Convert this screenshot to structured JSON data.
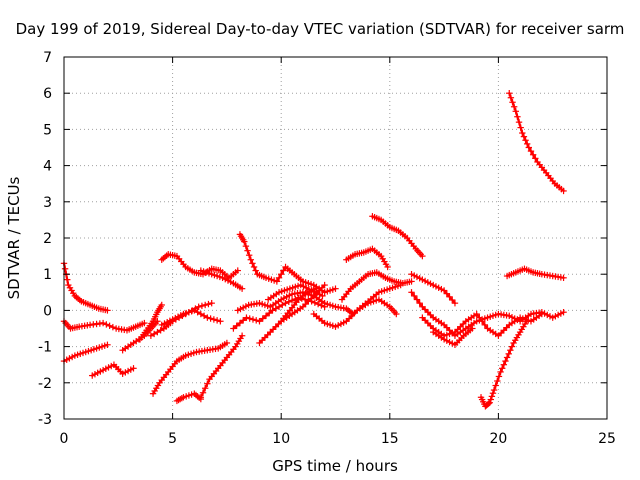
{
  "chart_data": {
    "type": "scatter",
    "title": "Day 199 of 2019, Sidereal Day-to-day VTEC variation (SDTVAR) for receiver sarm",
    "xlabel": "GPS time / hours",
    "ylabel": "SDTVAR / TECUs",
    "xlim": [
      0,
      25
    ],
    "ylim": [
      -3,
      7
    ],
    "xticks": [
      0,
      5,
      10,
      15,
      20,
      25
    ],
    "yticks": [
      -3,
      -2,
      -1,
      0,
      1,
      2,
      3,
      4,
      5,
      6,
      7
    ],
    "grid": true,
    "marker": "+",
    "color": "#ff0000",
    "series": [
      {
        "name": "s1",
        "x": [
          0.0,
          0.2,
          0.5,
          0.8,
          1.2,
          1.6,
          2.0
        ],
        "y": [
          1.3,
          0.7,
          0.4,
          0.25,
          0.15,
          0.05,
          0.0
        ]
      },
      {
        "name": "s2",
        "x": [
          0.0,
          0.3,
          0.7,
          1.2,
          1.8,
          2.4,
          2.9,
          3.3,
          3.7
        ],
        "y": [
          -0.3,
          -0.5,
          -0.45,
          -0.4,
          -0.35,
          -0.5,
          -0.55,
          -0.45,
          -0.35
        ]
      },
      {
        "name": "s3",
        "x": [
          0.0,
          0.5,
          1.0,
          1.5,
          2.0
        ],
        "y": [
          -1.4,
          -1.25,
          -1.15,
          -1.05,
          -0.95
        ]
      },
      {
        "name": "s4",
        "x": [
          1.3,
          1.8,
          2.3,
          2.7,
          3.2
        ],
        "y": [
          -1.8,
          -1.65,
          -1.5,
          -1.75,
          -1.6
        ]
      },
      {
        "name": "s5",
        "x": [
          2.7,
          3.2,
          3.7,
          4.0,
          4.3
        ],
        "y": [
          -1.1,
          -0.9,
          -0.7,
          -0.5,
          -0.3
        ]
      },
      {
        "name": "s6",
        "x": [
          3.5,
          3.8,
          4.1,
          4.3,
          4.5
        ],
        "y": [
          -0.8,
          -0.55,
          -0.3,
          -0.05,
          0.15
        ]
      },
      {
        "name": "s7",
        "x": [
          4.0,
          4.6,
          5.0,
          5.6,
          6.2,
          6.8
        ],
        "y": [
          -0.7,
          -0.5,
          -0.3,
          -0.1,
          0.1,
          0.2
        ]
      },
      {
        "name": "s8",
        "x": [
          4.5,
          5.0,
          5.5,
          6.0,
          6.6,
          7.2
        ],
        "y": [
          -0.4,
          -0.25,
          -0.1,
          0.0,
          -0.2,
          -0.3
        ]
      },
      {
        "name": "s9",
        "x": [
          4.1,
          4.4,
          4.8,
          5.2,
          5.6,
          6.1,
          6.6,
          7.1,
          7.5
        ],
        "y": [
          -2.3,
          -2.0,
          -1.7,
          -1.4,
          -1.25,
          -1.15,
          -1.1,
          -1.05,
          -0.9
        ]
      },
      {
        "name": "s10",
        "x": [
          5.2,
          5.5,
          6.0,
          6.3
        ],
        "y": [
          -2.5,
          -2.4,
          -2.3,
          -2.45
        ]
      },
      {
        "name": "s11",
        "x": [
          6.3,
          6.7,
          7.1,
          7.5,
          7.9,
          8.2
        ],
        "y": [
          -2.4,
          -1.9,
          -1.6,
          -1.3,
          -1.0,
          -0.7
        ]
      },
      {
        "name": "s12",
        "x": [
          4.5,
          4.8,
          5.2,
          5.6,
          6.0,
          6.4,
          6.8,
          7.2,
          7.6,
          8.0
        ],
        "y": [
          1.4,
          1.55,
          1.5,
          1.2,
          1.05,
          1.0,
          1.15,
          1.1,
          0.9,
          1.1
        ]
      },
      {
        "name": "s13",
        "x": [
          6.3,
          6.8,
          7.3,
          7.8,
          8.2
        ],
        "y": [
          1.1,
          1.0,
          0.9,
          0.75,
          0.6
        ]
      },
      {
        "name": "s14",
        "x": [
          8.1,
          8.3,
          8.6,
          8.9,
          9.3,
          9.8,
          10.2,
          10.6,
          11.0,
          11.5,
          12.0,
          12.5
        ],
        "y": [
          2.1,
          1.9,
          1.4,
          1.0,
          0.9,
          0.8,
          1.2,
          1.0,
          0.8,
          0.7,
          0.5,
          0.6
        ]
      },
      {
        "name": "s15",
        "x": [
          8.0,
          8.5,
          9.0,
          9.5,
          10.0,
          10.5,
          11.0,
          11.5,
          12.0,
          12.5,
          13.0,
          13.3
        ],
        "y": [
          0.0,
          0.15,
          0.2,
          0.1,
          0.3,
          0.45,
          0.5,
          0.4,
          0.2,
          0.1,
          0.05,
          -0.1
        ]
      },
      {
        "name": "s16",
        "x": [
          7.8,
          8.4,
          9.0,
          9.6,
          10.2,
          10.8,
          11.4,
          12.0
        ],
        "y": [
          -0.5,
          -0.2,
          -0.3,
          0.0,
          0.2,
          0.35,
          0.25,
          0.1
        ]
      },
      {
        "name": "s17",
        "x": [
          9.0,
          9.5,
          10.0,
          10.4,
          10.8,
          11.2,
          11.6
        ],
        "y": [
          -0.9,
          -0.6,
          -0.3,
          0.0,
          0.3,
          0.5,
          0.6
        ]
      },
      {
        "name": "s18",
        "x": [
          9.4,
          9.9,
          10.4,
          10.9,
          11.4,
          11.9
        ],
        "y": [
          0.3,
          0.5,
          0.6,
          0.7,
          0.55,
          0.4
        ]
      },
      {
        "name": "s19",
        "x": [
          10.0,
          10.5,
          11.0,
          11.5,
          12.0
        ],
        "y": [
          -0.3,
          -0.1,
          0.1,
          0.4,
          0.7
        ]
      },
      {
        "name": "s20",
        "x": [
          11.5,
          12.0,
          12.5,
          13.0,
          13.5,
          14.0,
          14.5,
          15.0,
          15.5
        ],
        "y": [
          -0.1,
          -0.35,
          -0.45,
          -0.3,
          0.0,
          0.25,
          0.5,
          0.6,
          0.7
        ]
      },
      {
        "name": "s21",
        "x": [
          12.8,
          13.2,
          13.6,
          14.0,
          14.4,
          14.8,
          15.2,
          15.6,
          16.0
        ],
        "y": [
          0.3,
          0.6,
          0.8,
          1.0,
          1.05,
          0.9,
          0.8,
          0.75,
          0.8
        ]
      },
      {
        "name": "s22",
        "x": [
          13.0,
          13.4,
          13.8,
          14.2,
          14.6,
          14.9
        ],
        "y": [
          1.4,
          1.55,
          1.6,
          1.7,
          1.5,
          1.2
        ]
      },
      {
        "name": "s23",
        "x": [
          14.2,
          14.6,
          15.0,
          15.4,
          15.8,
          16.2,
          16.5
        ],
        "y": [
          2.6,
          2.5,
          2.3,
          2.2,
          2.0,
          1.7,
          1.5
        ]
      },
      {
        "name": "s24",
        "x": [
          13.5,
          14.0,
          14.5,
          15.0,
          15.3
        ],
        "y": [
          0.0,
          0.2,
          0.3,
          0.1,
          -0.1
        ]
      },
      {
        "name": "s25",
        "x": [
          16.0,
          16.5,
          17.0,
          17.5,
          18.0
        ],
        "y": [
          1.0,
          0.85,
          0.7,
          0.55,
          0.2
        ]
      },
      {
        "name": "s26",
        "x": [
          16.0,
          16.5,
          17.0,
          17.5,
          18.0,
          18.5,
          19.0,
          19.5,
          20.0,
          20.5,
          21.0,
          21.5,
          22.0,
          22.5,
          23.0
        ],
        "y": [
          0.5,
          0.1,
          -0.2,
          -0.4,
          -0.7,
          -0.5,
          -0.3,
          -0.2,
          -0.1,
          -0.15,
          -0.3,
          -0.1,
          -0.05,
          -0.2,
          -0.05
        ]
      },
      {
        "name": "s27",
        "x": [
          16.5,
          17.0,
          17.5,
          18.0,
          18.5,
          19.0,
          19.5,
          20.0,
          20.5,
          21.0,
          21.5,
          22.0
        ],
        "y": [
          -0.2,
          -0.5,
          -0.7,
          -0.6,
          -0.3,
          -0.1,
          -0.5,
          -0.7,
          -0.4,
          -0.2,
          -0.3,
          -0.1
        ]
      },
      {
        "name": "s28",
        "x": [
          17.0,
          17.5,
          18.0,
          18.4,
          18.8
        ],
        "y": [
          -0.6,
          -0.8,
          -0.95,
          -0.7,
          -0.5
        ]
      },
      {
        "name": "s29",
        "x": [
          19.2,
          19.4,
          19.6,
          19.8,
          20.1,
          20.4,
          20.7,
          21.0,
          21.3
        ],
        "y": [
          -2.4,
          -2.65,
          -2.55,
          -2.2,
          -1.7,
          -1.3,
          -0.9,
          -0.6,
          -0.3
        ]
      },
      {
        "name": "s30",
        "x": [
          20.4,
          20.8,
          21.2,
          21.6,
          22.0,
          22.5,
          23.0
        ],
        "y": [
          0.95,
          1.05,
          1.15,
          1.05,
          1.0,
          0.95,
          0.9
        ]
      },
      {
        "name": "s31",
        "x": [
          20.5,
          20.8,
          21.1,
          21.4,
          21.8,
          22.2,
          22.6,
          23.0
        ],
        "y": [
          6.0,
          5.5,
          4.9,
          4.5,
          4.1,
          3.8,
          3.5,
          3.3
        ]
      }
    ]
  }
}
